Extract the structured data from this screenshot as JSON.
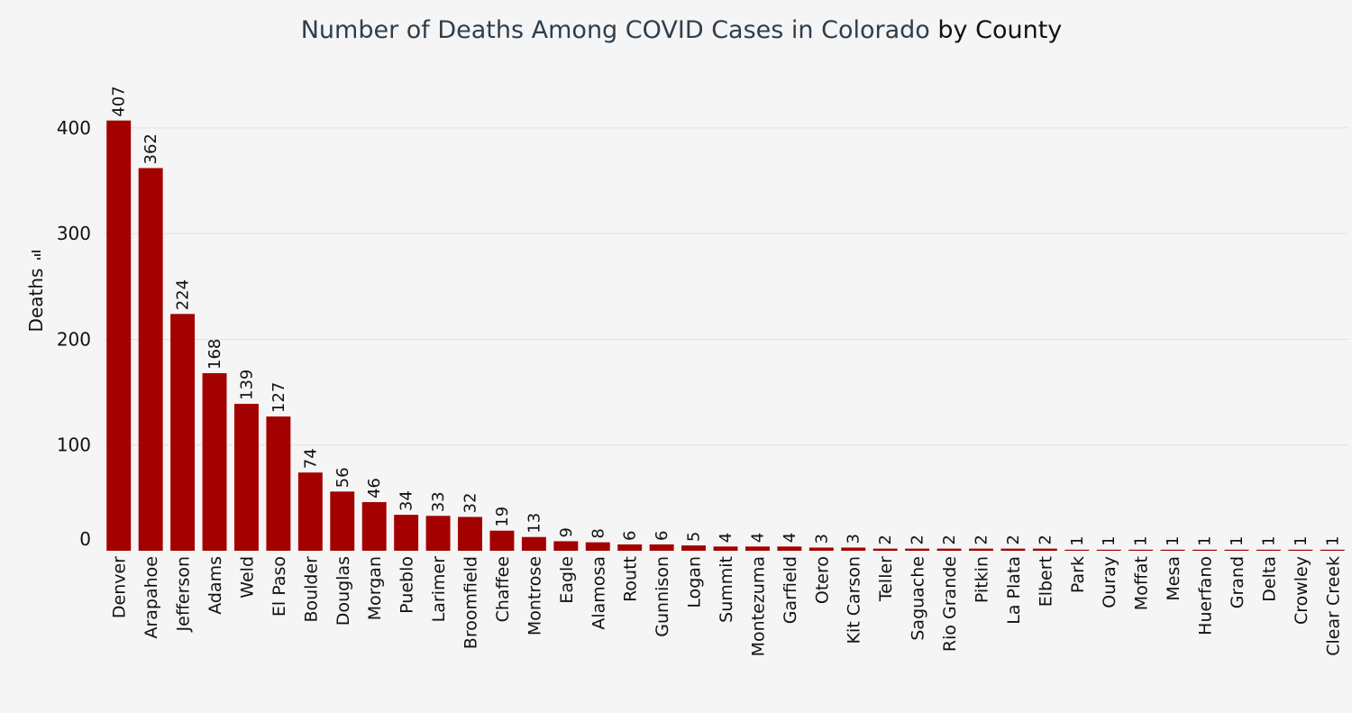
{
  "chart_data": {
    "type": "bar",
    "title": "Number of Deaths Among COVID Cases in Colorado",
    "title_suffix": "by County",
    "xlabel": "",
    "ylabel": "Deaths",
    "ylim": [
      0,
      440
    ],
    "yticks": [
      0,
      100,
      200,
      300,
      400
    ],
    "grid": true,
    "bar_color": "#a30000",
    "categories": [
      "Denver",
      "Arapahoe",
      "Jefferson",
      "Adams",
      "Weld",
      "El Paso",
      "Boulder",
      "Douglas",
      "Morgan",
      "Pueblo",
      "Larimer",
      "Broomfield",
      "Chaffee",
      "Montrose",
      "Eagle",
      "Alamosa",
      "Routt",
      "Gunnison",
      "Logan",
      "Summit",
      "Montezuma",
      "Garfield",
      "Otero",
      "Kit Carson",
      "Teller",
      "Saguache",
      "Rio Grande",
      "Pitkin",
      "La Plata",
      "Elbert",
      "Park",
      "Ouray",
      "Moffat",
      "Mesa",
      "Huerfano",
      "Grand",
      "Delta",
      "Crowley",
      "Clear Creek"
    ],
    "values": [
      407,
      362,
      224,
      168,
      139,
      127,
      74,
      56,
      46,
      34,
      33,
      32,
      19,
      13,
      9,
      8,
      6,
      6,
      5,
      4,
      4,
      4,
      3,
      3,
      2,
      2,
      2,
      2,
      2,
      2,
      1,
      1,
      1,
      1,
      1,
      1,
      1,
      1,
      1
    ]
  }
}
